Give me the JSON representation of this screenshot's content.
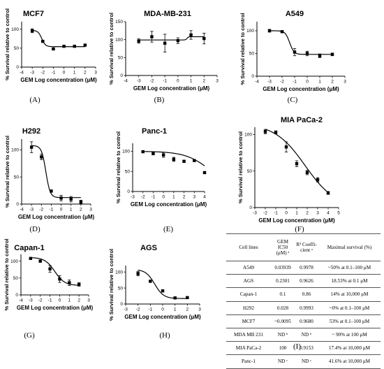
{
  "chart_data": [
    {
      "type": "scatter",
      "title": "MCF7",
      "xlabel": "GEM Log concentration (μM)",
      "ylabel": "% Survival relative to control",
      "panel_label": "(A)",
      "xlim": [
        -4,
        3
      ],
      "ylim": [
        0,
        120
      ],
      "xticks": [
        "-4",
        "-3",
        "-2",
        "-1",
        "0",
        "1",
        "2",
        "3"
      ],
      "yticks": [
        "0",
        "50",
        "100"
      ],
      "points": [
        {
          "x": -3,
          "y": 96,
          "err": 5
        },
        {
          "x": -2,
          "y": 68,
          "err": 2
        },
        {
          "x": -1,
          "y": 48,
          "err": 1
        },
        {
          "x": 0,
          "y": 55,
          "err": 1
        },
        {
          "x": 1,
          "y": 55,
          "err": 1
        },
        {
          "x": 2,
          "y": 58,
          "err": 1
        }
      ],
      "fit": {
        "top": 97,
        "bottom": 54,
        "ic50": -2.1,
        "hill": 2.5
      }
    },
    {
      "type": "scatter",
      "title": "MDA-MB-231",
      "xlabel": "GEM Log concentration (μM)",
      "ylabel": "% Survival relative to control",
      "panel_label": "(B)",
      "xlim": [
        -4,
        3
      ],
      "ylim": [
        0,
        150
      ],
      "xticks": [
        "-4",
        "-3",
        "-2",
        "-1",
        "0",
        "1",
        "2",
        "3"
      ],
      "yticks": [
        "0",
        "50",
        "100",
        "150"
      ],
      "points": [
        {
          "x": -3,
          "y": 96,
          "err": 6
        },
        {
          "x": -2,
          "y": 108,
          "err": 15
        },
        {
          "x": -1,
          "y": 90,
          "err": 25
        },
        {
          "x": 0,
          "y": 97,
          "err": 8
        },
        {
          "x": 1,
          "y": 113,
          "err": 12
        },
        {
          "x": 2,
          "y": 103,
          "err": 15
        }
      ],
      "fit": {
        "top": 99,
        "bottom": 108,
        "ic50": 0.7,
        "hill": 8
      }
    },
    {
      "type": "scatter",
      "title": "A549",
      "xlabel": "GEM Log concentration (μM)",
      "ylabel": "% Survival relative to control",
      "panel_label": "(C)",
      "xlim": [
        -4,
        3
      ],
      "ylim": [
        0,
        120
      ],
      "xticks": [
        "-4",
        "-3",
        "-2",
        "-1",
        "0",
        "1",
        "2",
        "3"
      ],
      "yticks": [
        "0",
        "50",
        "100"
      ],
      "points": [
        {
          "x": -3,
          "y": 100,
          "err": 3
        },
        {
          "x": -2,
          "y": 98,
          "err": 2
        },
        {
          "x": -1,
          "y": 53,
          "err": 8
        },
        {
          "x": 0,
          "y": 50,
          "err": 5
        },
        {
          "x": 1,
          "y": 45,
          "err": 4
        },
        {
          "x": 2,
          "y": 48,
          "err": 3
        }
      ],
      "fit": {
        "top": 100,
        "bottom": 48,
        "ic50": -1.4,
        "hill": 2.5
      }
    },
    {
      "type": "scatter",
      "title": "H292",
      "xlabel": "GEM Log concentration (μM)",
      "ylabel": "% Survival relative to control",
      "panel_label": "(D)",
      "xlim": [
        -4,
        3
      ],
      "ylim": [
        0,
        120
      ],
      "xticks": [
        "-4",
        "-3",
        "-2",
        "-1",
        "0",
        "1",
        "2",
        "3"
      ],
      "yticks": [
        "0",
        "50",
        "100"
      ],
      "points": [
        {
          "x": -3,
          "y": 105,
          "err": 10
        },
        {
          "x": -2,
          "y": 87,
          "err": 5
        },
        {
          "x": -1,
          "y": 24,
          "err": 2
        },
        {
          "x": 0,
          "y": 11,
          "err": 5
        },
        {
          "x": 1,
          "y": 9,
          "err": 5
        },
        {
          "x": 2,
          "y": 4,
          "err": 3
        }
      ],
      "fit": {
        "top": 108,
        "bottom": 12,
        "ic50": -1.55,
        "hill": 2
      }
    },
    {
      "type": "scatter",
      "title": "Panc-1",
      "xlabel": "GEM Log concentration (μM)",
      "ylabel": "% Survival relative to control",
      "panel_label": "(E)",
      "xlim": [
        -3,
        4
      ],
      "ylim": [
        0,
        120
      ],
      "xticks": [
        "-3",
        "-2",
        "-1",
        "0",
        "1",
        "2",
        "3",
        "4"
      ],
      "yticks": [
        "0",
        "50",
        "100"
      ],
      "points": [
        {
          "x": -2,
          "y": 99,
          "err": 2
        },
        {
          "x": -1,
          "y": 95,
          "err": 4
        },
        {
          "x": 0,
          "y": 91,
          "err": 6
        },
        {
          "x": 1,
          "y": 80,
          "err": 5
        },
        {
          "x": 2,
          "y": 75,
          "err": 3
        },
        {
          "x": 3,
          "y": 77,
          "err": 2
        },
        {
          "x": 4,
          "y": 47,
          "err": 2
        }
      ],
      "fit": {
        "top": 100,
        "bottom": 0,
        "ic50": 4.7,
        "hill": 0.35
      }
    },
    {
      "type": "scatter",
      "title": "MIA PaCa-2",
      "xlabel": "GEM Log concentration (μM)",
      "ylabel": "% Survival relative to control",
      "panel_label": "(F)",
      "xlim": [
        -3,
        5
      ],
      "ylim": [
        0,
        110
      ],
      "xticks": [
        "-3",
        "-2",
        "-1",
        "0",
        "1",
        "2",
        "3",
        "4",
        "5"
      ],
      "yticks": [
        "0",
        "50",
        "100"
      ],
      "points": [
        {
          "x": -2,
          "y": 104,
          "err": 3
        },
        {
          "x": -1,
          "y": 103,
          "err": 2
        },
        {
          "x": 0,
          "y": 83,
          "err": 7
        },
        {
          "x": 1,
          "y": 60,
          "err": 4
        },
        {
          "x": 2,
          "y": 48,
          "err": 3
        },
        {
          "x": 3,
          "y": 38,
          "err": 3
        },
        {
          "x": 4,
          "y": 20,
          "err": 2
        }
      ],
      "fit": {
        "top": 115,
        "bottom": 0,
        "ic50": 1.8,
        "hill": 0.3
      }
    },
    {
      "type": "scatter",
      "title": "Capan-1",
      "xlabel": "GEM Log concentration (μM)",
      "ylabel": "% Survival relative to control",
      "panel_label": "(G)",
      "xlim": [
        -4,
        3
      ],
      "ylim": [
        0,
        120
      ],
      "xticks": [
        "-4",
        "-3",
        "-2",
        "-1",
        "0",
        "1",
        "2",
        "3"
      ],
      "yticks": [
        "0",
        "50",
        "100"
      ],
      "points": [
        {
          "x": -3,
          "y": 108,
          "err": 2
        },
        {
          "x": -2,
          "y": 100,
          "err": 3
        },
        {
          "x": -1,
          "y": 77,
          "err": 10
        },
        {
          "x": 0,
          "y": 47,
          "err": 10
        },
        {
          "x": 1,
          "y": 36,
          "err": 8
        },
        {
          "x": 2,
          "y": 31,
          "err": 5
        }
      ],
      "fit": {
        "top": 111,
        "bottom": 28,
        "ic50": -0.5,
        "hill": 0.85
      }
    },
    {
      "type": "scatter",
      "title": "AGS",
      "xlabel": "GEM Log concentration (μM)",
      "ylabel": "% Survival relative to control",
      "panel_label": "(H)",
      "xlim": [
        -3,
        3
      ],
      "ylim": [
        0,
        120
      ],
      "xticks": [
        "-3",
        "-2",
        "-1",
        "0",
        "1",
        "2",
        "3"
      ],
      "yticks": [
        "0",
        "50",
        "100"
      ],
      "points": [
        {
          "x": -2,
          "y": 95,
          "err": 7
        },
        {
          "x": -1,
          "y": 71,
          "err": 3
        },
        {
          "x": 0,
          "y": 41,
          "err": 3
        },
        {
          "x": 1,
          "y": 19,
          "err": 2
        },
        {
          "x": 2,
          "y": 20,
          "err": 2
        }
      ],
      "fit": {
        "top": 108,
        "bottom": 17,
        "ic50": -0.65,
        "hill": 1.2
      }
    },
    {
      "type": "table",
      "panel_label": "(I)",
      "columns": [
        "Cell lines",
        "GEM IC50 (μM) ᵃ",
        "R² Coeffi-cient ᵃ",
        "Maximal survival (%)"
      ],
      "rows": [
        [
          "A549",
          "0.03939",
          "0.9978",
          "~50% at 0.1–100 μM"
        ],
        [
          "AGS",
          "0.2301",
          "0.9626",
          "18.53% at 0.1 μM"
        ],
        [
          "Capan-1",
          "0.1",
          "0.86",
          "14% at 10,000 μM"
        ],
        [
          "H292",
          "0.028",
          "0.9993",
          "~0% at 0.1–100 μM"
        ],
        [
          "MCF7",
          "~0.0095",
          "0.9680",
          "53% at 0.1–100 μM"
        ],
        [
          "MDA MB 231",
          "ND ᵇ",
          "ND ᵇ",
          "~ 90% at 100 μM"
        ],
        [
          "MIA PaCa-2",
          "100",
          "0.9153",
          "17.4% at 10,000 μM"
        ],
        [
          "Panc-1",
          "ND ᶜ",
          "ND ᶜ",
          "41.6% at 10,000 μM"
        ]
      ]
    }
  ]
}
